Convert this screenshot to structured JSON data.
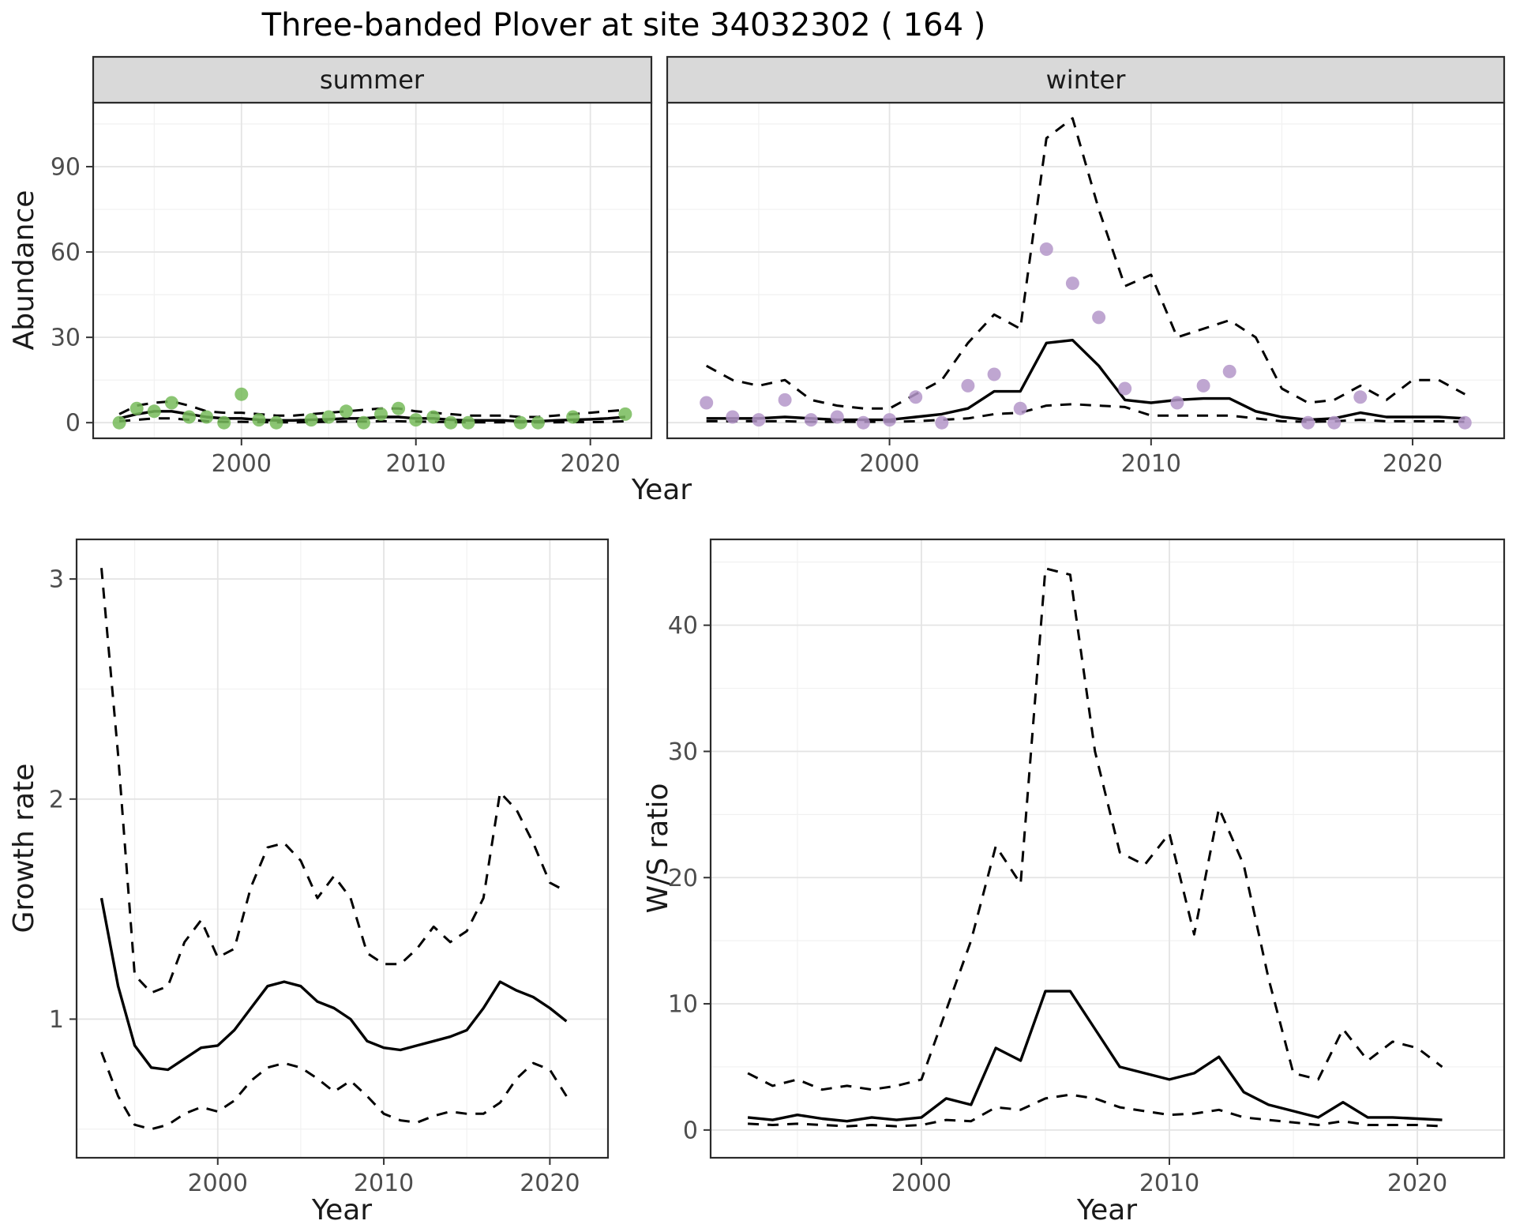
{
  "title": "Three-banded Plover at site 34032302 ( 164 )",
  "facets": [
    {
      "label": "summer"
    },
    {
      "label": "winter"
    }
  ],
  "chart_data": [
    {
      "id": "summer",
      "type": "line",
      "title": "summer",
      "xlabel": "Year",
      "ylabel": "Abundance",
      "xlim": [
        1991.5,
        2023.5
      ],
      "ylim": [
        -5.5,
        112.5
      ],
      "xticks": [
        2000,
        2010,
        2020
      ],
      "xminor": [
        1995,
        2005,
        2015
      ],
      "yticks": [
        0,
        30,
        60,
        90
      ],
      "yminor": [
        15,
        45,
        75,
        105
      ],
      "grid": true,
      "legend": "none",
      "series": [
        {
          "name": "estimate",
          "type": "line",
          "dash": false,
          "color": "#000000",
          "x": [
            1993,
            1994,
            1995,
            1996,
            1997,
            1998,
            1999,
            2000,
            2001,
            2002,
            2003,
            2004,
            2005,
            2006,
            2007,
            2008,
            2009,
            2010,
            2011,
            2012,
            2013,
            2014,
            2015,
            2016,
            2017,
            2018,
            2019,
            2020,
            2021,
            2022
          ],
          "y": [
            1.5,
            3,
            4,
            4,
            3,
            2,
            1.5,
            1.5,
            1,
            0.8,
            0.8,
            1,
            1.2,
            1.5,
            1.5,
            2,
            2,
            1.5,
            1.5,
            1,
            0.8,
            0.8,
            0.8,
            0.5,
            0.5,
            0.8,
            1,
            1.2,
            1.5,
            2
          ]
        },
        {
          "name": "upper_ci",
          "type": "line",
          "dash": true,
          "color": "#000000",
          "x": [
            1993,
            1994,
            1995,
            1996,
            1997,
            1998,
            1999,
            2000,
            2001,
            2002,
            2003,
            2004,
            2005,
            2006,
            2007,
            2008,
            2009,
            2010,
            2011,
            2012,
            2013,
            2014,
            2015,
            2016,
            2017,
            2018,
            2019,
            2020,
            2021,
            2022
          ],
          "y": [
            3,
            6,
            7,
            7.5,
            6,
            4,
            3.5,
            3.5,
            3,
            2.5,
            2.5,
            3,
            3.5,
            4,
            4.5,
            5,
            5,
            4,
            3.5,
            3,
            2.5,
            2.5,
            2.5,
            2,
            2,
            2.5,
            3,
            3.5,
            4,
            4.5
          ]
        },
        {
          "name": "lower_ci",
          "type": "line",
          "dash": true,
          "color": "#000000",
          "x": [
            1993,
            1994,
            1995,
            1996,
            1997,
            1998,
            1999,
            2000,
            2001,
            2002,
            2003,
            2004,
            2005,
            2006,
            2007,
            2008,
            2009,
            2010,
            2011,
            2012,
            2013,
            2014,
            2015,
            2016,
            2017,
            2018,
            2019,
            2020,
            2021,
            2022
          ],
          "y": [
            0.5,
            1,
            1.5,
            1.5,
            1,
            0.5,
            0.3,
            0.3,
            0.2,
            0.1,
            0.1,
            0.2,
            0.3,
            0.4,
            0.4,
            0.5,
            0.5,
            0.4,
            0.3,
            0.2,
            0.1,
            0.1,
            0.1,
            0.1,
            0.1,
            0.1,
            0.2,
            0.2,
            0.3,
            0.5
          ]
        },
        {
          "name": "observed_counts",
          "type": "scatter",
          "color": "#77bb5a",
          "x": [
            1993,
            1994,
            1995,
            1996,
            1997,
            1998,
            1999,
            2000,
            2001,
            2002,
            2004,
            2005,
            2006,
            2007,
            2008,
            2009,
            2010,
            2011,
            2012,
            2013,
            2016,
            2017,
            2019,
            2022
          ],
          "y": [
            0,
            5,
            4,
            7,
            2,
            2,
            0,
            10,
            1,
            0,
            1,
            2,
            4,
            0,
            3,
            5,
            1,
            2,
            0,
            0,
            0,
            0,
            2,
            3
          ]
        }
      ]
    },
    {
      "id": "winter",
      "type": "line",
      "title": "winter",
      "xlabel": "Year",
      "ylabel": "",
      "xlim": [
        1991.5,
        2023.5
      ],
      "ylim": [
        -5.5,
        112.5
      ],
      "xticks": [
        2000,
        2010,
        2020
      ],
      "xminor": [
        1995,
        2005,
        2015
      ],
      "yticks": [
        0,
        30,
        60,
        90
      ],
      "yminor": [
        15,
        45,
        75,
        105
      ],
      "grid": true,
      "legend": "none",
      "series": [
        {
          "name": "estimate",
          "type": "line",
          "dash": false,
          "color": "#000000",
          "x": [
            1993,
            1994,
            1995,
            1996,
            1997,
            1998,
            1999,
            2000,
            2001,
            2002,
            2003,
            2004,
            2005,
            2006,
            2007,
            2008,
            2009,
            2010,
            2011,
            2012,
            2013,
            2014,
            2015,
            2016,
            2017,
            2018,
            2019,
            2020,
            2021,
            2022
          ],
          "y": [
            1.5,
            1.5,
            1.5,
            2,
            1.5,
            1,
            1,
            1,
            2,
            3,
            5,
            11,
            11,
            28,
            29,
            20,
            8,
            7,
            8,
            8.5,
            8.5,
            4,
            2,
            1,
            1.5,
            3.5,
            2,
            2,
            2,
            1.5
          ]
        },
        {
          "name": "upper_ci",
          "type": "line",
          "dash": true,
          "color": "#000000",
          "x": [
            1993,
            1994,
            1995,
            1996,
            1997,
            1998,
            1999,
            2000,
            2001,
            2002,
            2003,
            2004,
            2005,
            2006,
            2007,
            2008,
            2009,
            2010,
            2011,
            2012,
            2013,
            2014,
            2015,
            2016,
            2017,
            2018,
            2019,
            2020,
            2021,
            2022
          ],
          "y": [
            20,
            15,
            13,
            15,
            8,
            6,
            5,
            5,
            10,
            15,
            28,
            38,
            33,
            100,
            107,
            75,
            48,
            52,
            30,
            33,
            36,
            30,
            12,
            7,
            8,
            13,
            8,
            15,
            15,
            10
          ]
        },
        {
          "name": "lower_ci",
          "type": "line",
          "dash": true,
          "color": "#000000",
          "x": [
            1993,
            1994,
            1995,
            1996,
            1997,
            1998,
            1999,
            2000,
            2001,
            2002,
            2003,
            2004,
            2005,
            2006,
            2007,
            2008,
            2009,
            2010,
            2011,
            2012,
            2013,
            2014,
            2015,
            2016,
            2017,
            2018,
            2019,
            2020,
            2021,
            2022
          ],
          "y": [
            0.5,
            0.5,
            0.5,
            0.5,
            0.3,
            0.3,
            0.3,
            0.3,
            0.5,
            1,
            1.5,
            3,
            3.5,
            6,
            6.5,
            6,
            5.5,
            2.5,
            2.5,
            2.5,
            2.5,
            1.5,
            0.5,
            0.3,
            0.5,
            1,
            0.5,
            0.5,
            0.5,
            0.3
          ]
        },
        {
          "name": "observed_counts",
          "type": "scatter",
          "color": "#b497c9",
          "x": [
            1993,
            1994,
            1995,
            1996,
            1997,
            1998,
            1999,
            2000,
            2001,
            2002,
            2003,
            2004,
            2005,
            2006,
            2007,
            2008,
            2009,
            2011,
            2012,
            2013,
            2016,
            2017,
            2018,
            2022
          ],
          "y": [
            7,
            2,
            1,
            8,
            1,
            2,
            0,
            1,
            9,
            0,
            13,
            17,
            5,
            61,
            49,
            37,
            12,
            7,
            13,
            18,
            0,
            0,
            9,
            0
          ]
        }
      ]
    },
    {
      "id": "growth",
      "type": "line",
      "title": "",
      "xlabel": "Year",
      "ylabel": "Growth rate",
      "xlim": [
        1991.5,
        2023.5
      ],
      "ylim": [
        0.37,
        3.18
      ],
      "xticks": [
        2000,
        2010,
        2020
      ],
      "xminor": [
        1995,
        2005,
        2015
      ],
      "yticks": [
        1,
        2,
        3
      ],
      "yminor": [
        0.5,
        1.5,
        2.5
      ],
      "grid": true,
      "legend": "none",
      "series": [
        {
          "name": "estimate",
          "type": "line",
          "dash": false,
          "color": "#000000",
          "x": [
            1993,
            1994,
            1995,
            1996,
            1997,
            1998,
            1999,
            2000,
            2001,
            2002,
            2003,
            2004,
            2005,
            2006,
            2007,
            2008,
            2009,
            2010,
            2011,
            2012,
            2013,
            2014,
            2015,
            2016,
            2017,
            2018,
            2019,
            2020,
            2021
          ],
          "y": [
            1.55,
            1.15,
            0.88,
            0.78,
            0.77,
            0.82,
            0.87,
            0.88,
            0.95,
            1.05,
            1.15,
            1.17,
            1.15,
            1.08,
            1.05,
            1.0,
            0.9,
            0.87,
            0.86,
            0.88,
            0.9,
            0.92,
            0.95,
            1.05,
            1.17,
            1.13,
            1.1,
            1.05,
            0.99
          ]
        },
        {
          "name": "upper_ci",
          "type": "line",
          "dash": true,
          "color": "#000000",
          "x": [
            1993,
            1994,
            1995,
            1996,
            1997,
            1998,
            1999,
            2000,
            2001,
            2002,
            2003,
            2004,
            2005,
            2006,
            2007,
            2008,
            2009,
            2010,
            2011,
            2012,
            2013,
            2014,
            2015,
            2016,
            2017,
            2018,
            2019,
            2020,
            2021
          ],
          "y": [
            3.05,
            2.2,
            1.2,
            1.12,
            1.15,
            1.35,
            1.45,
            1.28,
            1.32,
            1.6,
            1.78,
            1.8,
            1.72,
            1.55,
            1.65,
            1.55,
            1.3,
            1.25,
            1.25,
            1.32,
            1.42,
            1.35,
            1.4,
            1.55,
            2.03,
            1.95,
            1.8,
            1.62,
            1.58
          ]
        },
        {
          "name": "lower_ci",
          "type": "line",
          "dash": true,
          "color": "#000000",
          "x": [
            1993,
            1994,
            1995,
            1996,
            1997,
            1998,
            1999,
            2000,
            2001,
            2002,
            2003,
            2004,
            2005,
            2006,
            2007,
            2008,
            2009,
            2010,
            2011,
            2012,
            2013,
            2014,
            2015,
            2016,
            2017,
            2018,
            2019,
            2020,
            2021
          ],
          "y": [
            0.85,
            0.65,
            0.52,
            0.5,
            0.52,
            0.57,
            0.6,
            0.58,
            0.63,
            0.72,
            0.78,
            0.8,
            0.78,
            0.73,
            0.67,
            0.72,
            0.65,
            0.57,
            0.54,
            0.53,
            0.56,
            0.58,
            0.57,
            0.57,
            0.62,
            0.73,
            0.8,
            0.77,
            0.65
          ]
        }
      ]
    },
    {
      "id": "ws",
      "type": "line",
      "title": "",
      "xlabel": "Year",
      "ylabel": "W/S ratio",
      "xlim": [
        1991.5,
        2023.5
      ],
      "ylim": [
        -2.2,
        46.8
      ],
      "xticks": [
        2000,
        2010,
        2020
      ],
      "xminor": [
        1995,
        2005,
        2015
      ],
      "yticks": [
        0,
        10,
        20,
        30,
        40
      ],
      "yminor": [
        5,
        15,
        25,
        35,
        45
      ],
      "grid": true,
      "legend": "none",
      "series": [
        {
          "name": "estimate",
          "type": "line",
          "dash": false,
          "color": "#000000",
          "x": [
            1993,
            1994,
            1995,
            1996,
            1997,
            1998,
            1999,
            2000,
            2001,
            2002,
            2003,
            2004,
            2005,
            2006,
            2007,
            2008,
            2009,
            2010,
            2011,
            2012,
            2013,
            2014,
            2015,
            2016,
            2017,
            2018,
            2019,
            2020,
            2021
          ],
          "y": [
            1,
            0.8,
            1.2,
            0.9,
            0.7,
            1,
            0.8,
            1,
            2.5,
            2,
            6.5,
            5.5,
            11,
            11,
            8,
            5,
            4.5,
            4,
            4.5,
            5.8,
            3,
            2,
            1.5,
            1,
            2.2,
            1,
            1,
            0.9,
            0.8
          ]
        },
        {
          "name": "upper_ci",
          "type": "line",
          "dash": true,
          "color": "#000000",
          "x": [
            1993,
            1994,
            1995,
            1996,
            1997,
            1998,
            1999,
            2000,
            2001,
            2002,
            2003,
            2004,
            2005,
            2006,
            2007,
            2008,
            2009,
            2010,
            2011,
            2012,
            2013,
            2014,
            2015,
            2016,
            2017,
            2018,
            2019,
            2020,
            2021
          ],
          "y": [
            4.5,
            3.5,
            4,
            3.2,
            3.5,
            3.2,
            3.5,
            4,
            9.5,
            15,
            22.5,
            19.5,
            44.5,
            44,
            30,
            22,
            21,
            23.5,
            15.5,
            25.5,
            21,
            12,
            4.5,
            4,
            8,
            5.5,
            7,
            6.5,
            5
          ]
        },
        {
          "name": "lower_ci",
          "type": "line",
          "dash": true,
          "color": "#000000",
          "x": [
            1993,
            1994,
            1995,
            1996,
            1997,
            1998,
            1999,
            2000,
            2001,
            2002,
            2003,
            2004,
            2005,
            2006,
            2007,
            2008,
            2009,
            2010,
            2011,
            2012,
            2013,
            2014,
            2015,
            2016,
            2017,
            2018,
            2019,
            2020,
            2021
          ],
          "y": [
            0.5,
            0.4,
            0.5,
            0.4,
            0.3,
            0.4,
            0.3,
            0.4,
            0.8,
            0.7,
            1.8,
            1.6,
            2.5,
            2.8,
            2.5,
            1.8,
            1.5,
            1.2,
            1.3,
            1.6,
            1,
            0.8,
            0.6,
            0.4,
            0.7,
            0.4,
            0.4,
            0.4,
            0.3
          ]
        }
      ]
    }
  ]
}
